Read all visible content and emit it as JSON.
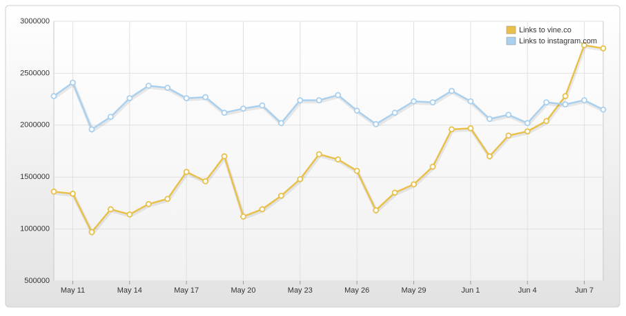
{
  "chart_data": {
    "type": "line",
    "categories": [
      null,
      "May 11",
      null,
      null,
      "May 14",
      null,
      null,
      "May 17",
      null,
      null,
      "May 20",
      null,
      null,
      "May 23",
      null,
      null,
      "May 26",
      null,
      null,
      "May 29",
      null,
      null,
      "Jun 1",
      null,
      null,
      "Jun 4",
      null,
      null,
      "Jun 7",
      null
    ],
    "series": [
      {
        "name": "Links to vine.co",
        "color": "#e8c04a",
        "values": [
          1360000,
          1340000,
          970000,
          1190000,
          1140000,
          1240000,
          1290000,
          1550000,
          1460000,
          1700000,
          1120000,
          1190000,
          1320000,
          1480000,
          1720000,
          1670000,
          1560000,
          1180000,
          1350000,
          1430000,
          1600000,
          1960000,
          1970000,
          1700000,
          1900000,
          1940000,
          2040000,
          2280000,
          2770000,
          2740000
        ]
      },
      {
        "name": "Links to instagram.com",
        "color": "#a9d0ee",
        "values": [
          2280000,
          2410000,
          1960000,
          2080000,
          2260000,
          2380000,
          2360000,
          2260000,
          2270000,
          2120000,
          2160000,
          2190000,
          2020000,
          2240000,
          2240000,
          2290000,
          2140000,
          2010000,
          2120000,
          2230000,
          2220000,
          2330000,
          2230000,
          2060000,
          2100000,
          2020000,
          2220000,
          2200000,
          2240000,
          2150000
        ]
      }
    ],
    "ylim": [
      500000,
      3000000
    ],
    "yticks": [
      500000,
      1000000,
      1500000,
      2000000,
      2500000,
      3000000
    ],
    "grid": true,
    "legend": "top-right"
  }
}
